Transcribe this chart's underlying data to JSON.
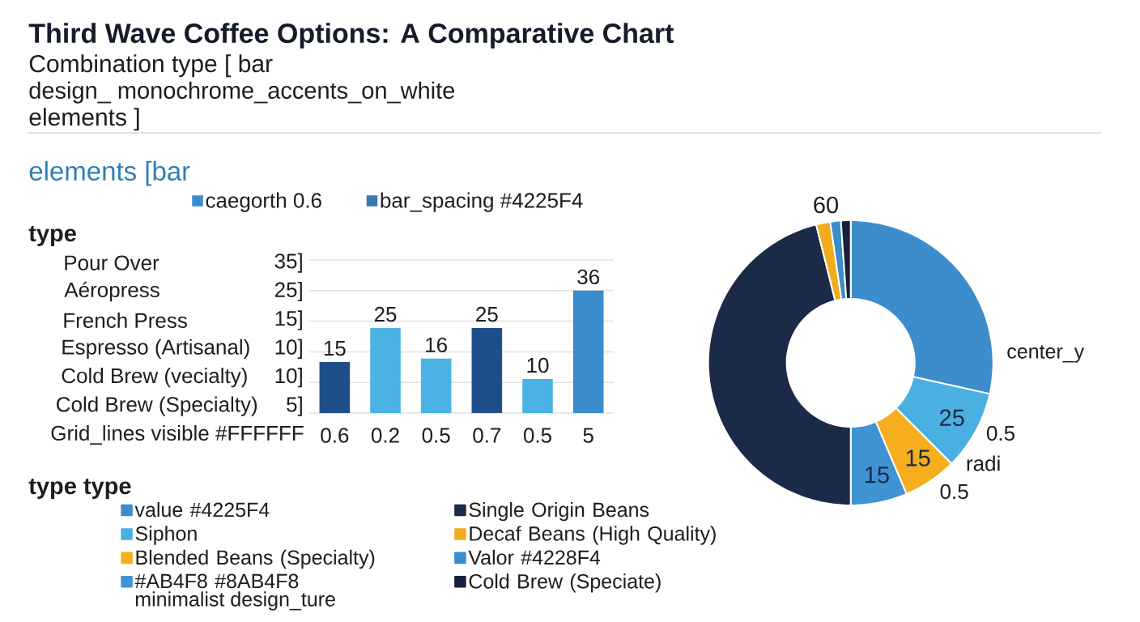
{
  "chart_data": [
    {
      "type": "bar",
      "title": "Third Wave Coffee Options: A Comparative Chart",
      "subtitle": "Combination type [ bar",
      "ylabel": "type",
      "annotations": [
        "design_ monochrome_accents_on_white",
        "elements ]",
        "elements [bar",
        "Pour Over",
        "35]",
        "Aéropress",
        "25]",
        "French Press",
        "15]",
        "Espresso (Artisanal)",
        "10]",
        "Cold Brew (vecialty)",
        "10]",
        "Cold Brew (Specialty)",
        "5]",
        "Grid_lines visible #FFFFFF"
      ],
      "categories": [
        "0.6",
        "0.2",
        "0.5",
        "0.7",
        "0.5",
        "5"
      ],
      "series": [
        {
          "name": "caegorth 0.6",
          "color": "#3a8ccc",
          "colors": [
            "#1f4f8a",
            "#4ab3e3",
            "#4ab3e3",
            "#1f4f8a",
            "#4ab3e3",
            "#3a8ccc"
          ],
          "values": [
            15,
            25,
            16,
            25,
            10,
            36
          ]
        },
        {
          "name": "bar_spacing #4225F4",
          "color": "#3a78b4",
          "values": [
            null,
            null,
            null,
            null,
            null,
            null
          ]
        }
      ],
      "data_labels": true,
      "grid": "y",
      "legend": "top"
    },
    {
      "type": "donut",
      "legend_title": "type type",
      "categories": [
        "value #4225F4",
        "Siphon",
        "Blended Beans (Specialty)",
        "#AB4F8 #8AB4F8",
        "Single Origin Beans",
        "Decaf Beans (High Quality)",
        "Valor #4228F4",
        "Cold Brew (Speciate)"
      ],
      "values": [
        28.5,
        9.0,
        6.1,
        6.4,
        46.1,
        1.6,
        1.2,
        1.1
      ],
      "colors": [
        "#3d8dcc",
        "#4ab0e2",
        "#f5ae1e",
        "#3f93d2",
        "#1b2a47",
        "#f0ac1e",
        "#3a8ccc",
        "#15213a"
      ],
      "annotations": [
        "60",
        "center_y",
        "25",
        "0.5",
        "15",
        "radi",
        "15",
        "0.5",
        "minimalist design_ture"
      ],
      "legend": "bottom left"
    }
  ]
}
